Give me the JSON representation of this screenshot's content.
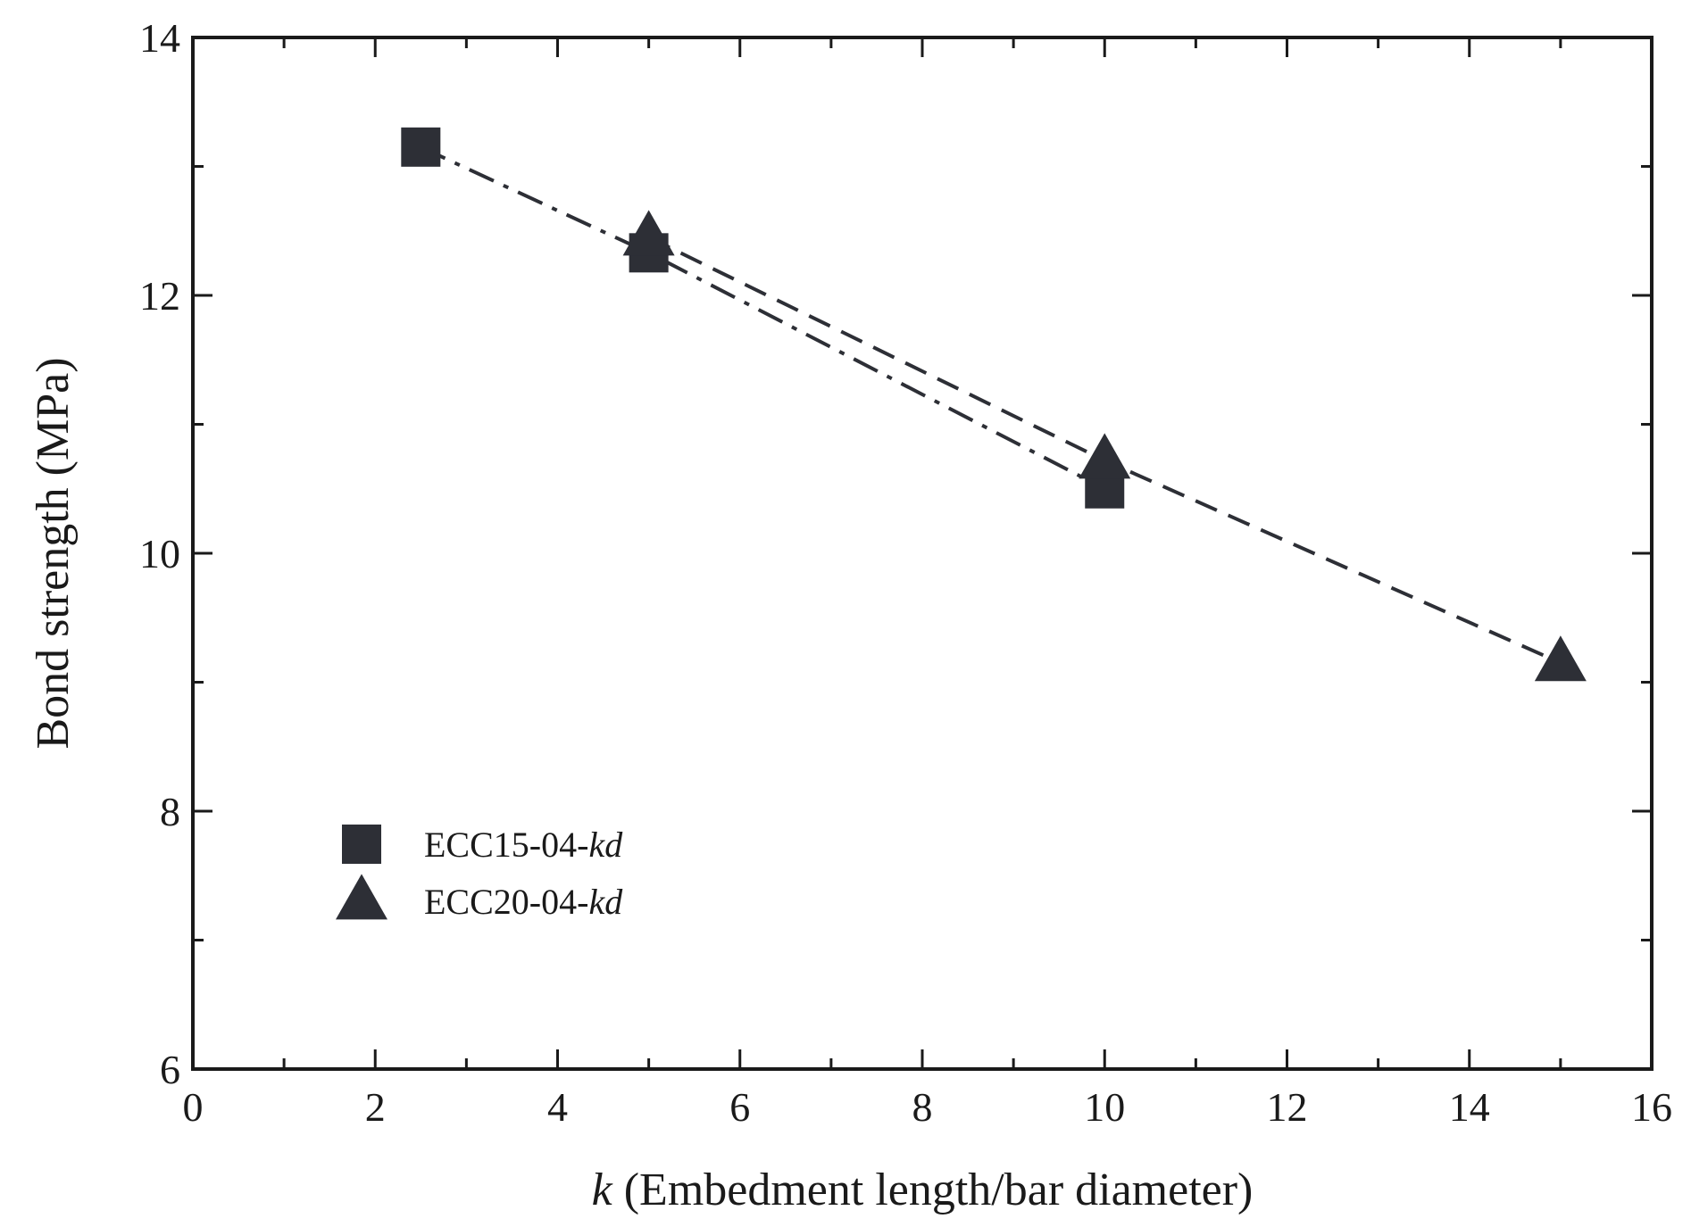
{
  "chart_data": {
    "type": "line",
    "title": "",
    "xlabel_var": "k",
    "xlabel_rest": " (Embedment length/bar diameter)",
    "ylabel": "Bond strength (MPa)",
    "xlim": [
      0,
      16
    ],
    "ylim": [
      6,
      14
    ],
    "x_ticks": [
      0,
      2,
      4,
      6,
      8,
      10,
      12,
      14,
      16
    ],
    "y_ticks": [
      6,
      8,
      10,
      12,
      14
    ],
    "x_minor_step": 1,
    "y_minor_step": 1,
    "grid": false,
    "legend_position": "lower-left",
    "series": [
      {
        "name_prefix": "ECC15-04-",
        "name_suffix": "kd",
        "marker": "square",
        "line_style": "dash-dot",
        "color": "#2d2f36",
        "x": [
          2.5,
          5,
          10
        ],
        "y": [
          13.15,
          12.33,
          10.5
        ]
      },
      {
        "name_prefix": "ECC20-04-",
        "name_suffix": "kd",
        "marker": "triangle",
        "line_style": "dashed",
        "color": "#2d2f36",
        "x": [
          5,
          10,
          15
        ],
        "y": [
          12.45,
          10.72,
          9.15
        ]
      }
    ]
  }
}
